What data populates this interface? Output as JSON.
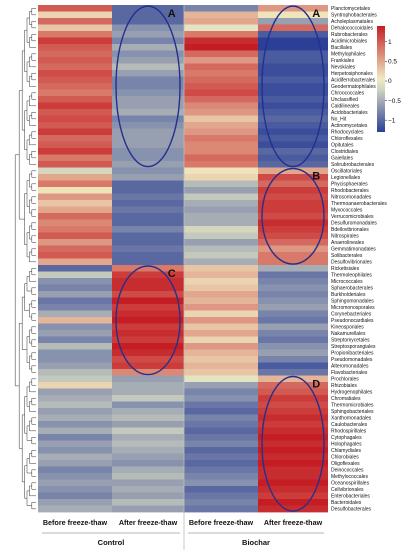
{
  "chart_data": {
    "type": "heatmap",
    "title": "",
    "columns": [
      "Before freeze-thaw",
      "After freeze-thaw",
      "Before freeze-thaw",
      "After freeze-thaw"
    ],
    "groups": [
      {
        "name": "Control",
        "columns": [
          0,
          1
        ]
      },
      {
        "name": "Biochar",
        "columns": [
          2,
          3
        ]
      }
    ],
    "rows": [
      "Planctomycetales",
      "Syntrophobacterales",
      "Acholeplasmatales",
      "Dehalococcoidales",
      "Rubrobacterales",
      "Acidimicrobiales",
      "Bacillales",
      "Methylophilales",
      "Frankiales",
      "Nevskiales",
      "Herpetosiphonales",
      "Acidiferrobacterales",
      "Geodermatophilales",
      "Chroococcales",
      "Unclassified",
      "Caldilineales",
      "Acidobacteriales",
      "No_Hit",
      "Actinomycetales",
      "Rhodocyclales",
      "Chloroflexales",
      "Opitutales",
      "Clostridiales",
      "Gaiellales",
      "Solirubrobacterales",
      "Oscillatoriales",
      "Legionellales",
      "Phycisphaerales",
      "Rhodobacterales",
      "Nitrosomonadales",
      "Thermoanaerobacterales",
      "Myxococcales",
      "Verrucomicrobiales",
      "Desulfuromonadales",
      "Bdellovibrionales",
      "Nitrospirales",
      "Anaerolineales",
      "Gemmatimonadales",
      "Solibacterales",
      "Desulfovibrionales",
      "Rickettsiales",
      "Thermoleophilales",
      "Micrococcales",
      "Sphaerobacterales",
      "Burkholderiales",
      "Sphingomonadales",
      "Micromonosporales",
      "Corynebacteriales",
      "Pseudonocardiales",
      "Kineosporiales",
      "Nakamurellales",
      "Streptomycetales",
      "Streptosporangiales",
      "Propionibacteriales",
      "Pseudomonadales",
      "Alteromonadales",
      "Flavobacteriales",
      "Prochlorales",
      "Rhizobiales",
      "Hydrogenophilales",
      "Chromatiales",
      "Thermomicrobiales",
      "Sphingobacteriales",
      "Xanthomonadales",
      "Caulobacterales",
      "Rhodospirillales",
      "Cytophagales",
      "Holophagales",
      "Chlamydiales",
      "Chlorobiales",
      "Oligoflexales",
      "Deinococcales",
      "Methylococcales",
      "Oceanospirillales",
      "Cellvibrionales",
      "Enterobacteriales",
      "Bacteroidales",
      "Desulfobacterales"
    ],
    "values": [
      [
        1.0,
        -1.0,
        -0.8,
        0.6
      ],
      [
        0.2,
        -1.0,
        0.4,
        0.1
      ],
      [
        0.9,
        -1.0,
        0.5,
        -0.6
      ],
      [
        0.3,
        -0.7,
        -0.1,
        0.9
      ],
      [
        0.8,
        -0.6,
        0.8,
        -1.1
      ],
      [
        1.2,
        -0.8,
        1.3,
        -1.3
      ],
      [
        1.0,
        -0.5,
        1.4,
        -1.3
      ],
      [
        0.9,
        -0.7,
        0.9,
        -1.1
      ],
      [
        1.0,
        -0.6,
        0.6,
        -1.1
      ],
      [
        0.9,
        -0.4,
        0.9,
        -1.2
      ],
      [
        1.1,
        -0.6,
        0.8,
        -1.2
      ],
      [
        1.0,
        -0.8,
        0.9,
        -1.1
      ],
      [
        0.9,
        -0.8,
        1.0,
        -1.2
      ],
      [
        0.8,
        -0.7,
        1.1,
        -1.2
      ],
      [
        1.0,
        -0.6,
        0.9,
        -1.1
      ],
      [
        1.2,
        -0.6,
        0.7,
        -1.2
      ],
      [
        1.0,
        -0.5,
        0.6,
        -1.1
      ],
      [
        1.1,
        -0.8,
        0.3,
        -1.0
      ],
      [
        1.0,
        -0.7,
        0.5,
        -1.1
      ],
      [
        1.2,
        -0.6,
        0.6,
        -1.2
      ],
      [
        0.9,
        -0.6,
        0.8,
        -1.1
      ],
      [
        1.0,
        -0.6,
        0.7,
        -1.2
      ],
      [
        1.2,
        -0.7,
        0.7,
        -1.0
      ],
      [
        0.8,
        -0.7,
        0.9,
        -1.1
      ],
      [
        1.0,
        -0.6,
        0.8,
        -1.0
      ],
      [
        -0.2,
        -0.7,
        0.1,
        0.5
      ],
      [
        0.5,
        -0.6,
        0.2,
        1.1
      ],
      [
        0.8,
        -1.0,
        -0.4,
        0.9
      ],
      [
        0.1,
        -1.0,
        -0.6,
        1.2
      ],
      [
        0.6,
        -0.9,
        -0.3,
        1.1
      ],
      [
        0.3,
        -1.0,
        -0.5,
        1.2
      ],
      [
        0.5,
        -0.9,
        -0.6,
        1.2
      ],
      [
        0.9,
        -1.0,
        -0.5,
        1.1
      ],
      [
        0.7,
        -1.0,
        -0.5,
        1.3
      ],
      [
        0.8,
        -0.8,
        -0.2,
        1.2
      ],
      [
        1.0,
        -1.0,
        -0.3,
        1.1
      ],
      [
        0.6,
        -1.0,
        -0.6,
        0.9
      ],
      [
        0.9,
        -0.9,
        -0.4,
        0.6
      ],
      [
        1.0,
        -1.0,
        -0.3,
        0.8
      ],
      [
        0.5,
        -1.0,
        -0.5,
        0.8
      ],
      [
        -1.0,
        0.8,
        0.3,
        -0.5
      ],
      [
        -0.3,
        1.2,
        0.4,
        -0.9
      ],
      [
        -0.7,
        1.3,
        0.2,
        -0.8
      ],
      [
        -0.8,
        1.3,
        0.3,
        -0.7
      ],
      [
        -0.6,
        1.1,
        0.5,
        -0.8
      ],
      [
        -0.9,
        1.4,
        0.4,
        -0.7
      ],
      [
        -0.8,
        1.2,
        0.6,
        -0.6
      ],
      [
        -0.5,
        1.3,
        0.2,
        -0.8
      ],
      [
        0.4,
        1.4,
        0.6,
        -0.9
      ],
      [
        -0.7,
        1.2,
        0.3,
        -0.6
      ],
      [
        -0.6,
        1.3,
        0.5,
        -0.8
      ],
      [
        -0.8,
        1.2,
        0.2,
        -0.9
      ],
      [
        -0.4,
        1.4,
        0.6,
        -0.7
      ],
      [
        -0.7,
        1.3,
        0.4,
        -0.6
      ],
      [
        -0.7,
        1.1,
        0.3,
        -0.8
      ],
      [
        -0.6,
        1.2,
        0.4,
        -1.1
      ],
      [
        -0.4,
        0.7,
        0.3,
        -0.9
      ],
      [
        -0.3,
        -0.6,
        -0.1,
        0.4
      ],
      [
        0.2,
        -0.5,
        -0.6,
        0.9
      ],
      [
        -0.6,
        -0.5,
        -0.8,
        1.0
      ],
      [
        -0.5,
        -0.3,
        -0.7,
        1.2
      ],
      [
        -0.4,
        -0.7,
        -0.9,
        1.1
      ],
      [
        -0.6,
        -0.5,
        -1.0,
        1.2
      ],
      [
        -0.5,
        -0.4,
        -0.8,
        1.3
      ],
      [
        -0.7,
        -0.6,
        -0.9,
        1.2
      ],
      [
        -0.5,
        -0.3,
        -1.0,
        1.3
      ],
      [
        -0.8,
        -0.5,
        -0.9,
        1.4
      ],
      [
        -0.6,
        -0.4,
        -0.8,
        1.3
      ],
      [
        -0.7,
        -0.5,
        -1.0,
        1.4
      ],
      [
        -0.5,
        -0.6,
        -0.9,
        1.3
      ],
      [
        -0.6,
        -0.7,
        -1.0,
        1.4
      ],
      [
        -0.8,
        -0.5,
        -0.9,
        1.3
      ],
      [
        -0.7,
        -0.4,
        -0.8,
        1.3
      ],
      [
        -0.6,
        -0.6,
        -0.7,
        1.4
      ],
      [
        -0.7,
        -0.5,
        -1.0,
        1.3
      ],
      [
        -0.8,
        -0.6,
        -0.9,
        1.2
      ],
      [
        -0.6,
        -0.4,
        -0.8,
        1.4
      ],
      [
        -0.5,
        -0.6,
        -0.9,
        1.3
      ]
    ],
    "color_scale": {
      "range": [
        -1.3,
        1.4
      ],
      "low_color": "#2c3f97",
      "mid_color": "#f2f2c8",
      "high_color": "#c41e24",
      "ticks": [
        1,
        0.5,
        0,
        -0.5,
        -1
      ],
      "tick_labels": [
        "1",
        "0.5",
        "0",
        "−0.5",
        "−1"
      ]
    },
    "annotations": [
      {
        "label": "A",
        "columns": [
          1
        ],
        "rows": [
          0,
          24
        ]
      },
      {
        "label": "A",
        "columns": [
          3
        ],
        "rows": [
          0,
          24
        ]
      },
      {
        "label": "B",
        "columns": [
          3
        ],
        "rows": [
          25,
          39
        ]
      },
      {
        "label": "C",
        "columns": [
          1
        ],
        "rows": [
          40,
          56
        ]
      },
      {
        "label": "D",
        "columns": [
          3
        ],
        "rows": [
          57,
          77
        ]
      }
    ],
    "row_dendrogram": true,
    "legend_position": "top-right",
    "grid": false
  }
}
